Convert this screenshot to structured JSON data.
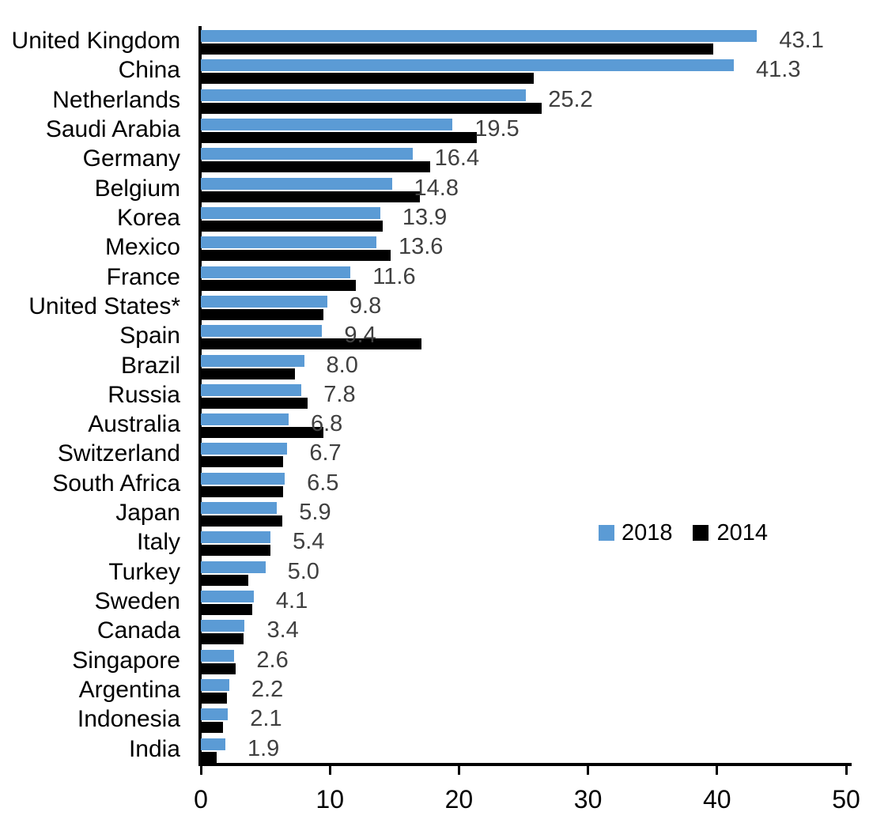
{
  "chart_data": {
    "type": "bar",
    "orientation": "horizontal",
    "title": "",
    "xlabel": "",
    "ylabel": "",
    "xlim": [
      0,
      50
    ],
    "x_ticks": [
      0,
      10,
      20,
      30,
      40,
      50
    ],
    "grid": false,
    "legend_position": "middle-right",
    "categories": [
      "United Kingdom",
      "China",
      "Netherlands",
      "Saudi Arabia",
      "Germany",
      "Belgium",
      "Korea",
      "Mexico",
      "France",
      "United States*",
      "Spain",
      "Brazil",
      "Russia",
      "Australia",
      "Switzerland",
      "South Africa",
      "Japan",
      "Italy",
      "Turkey",
      "Sweden",
      "Canada",
      "Singapore",
      "Argentina",
      "Indonesia",
      "India"
    ],
    "series": [
      {
        "name": "2018",
        "color": "#5B9BD5",
        "values": [
          43.1,
          41.3,
          25.2,
          19.5,
          16.4,
          14.8,
          13.9,
          13.6,
          11.6,
          9.8,
          9.4,
          8.0,
          7.8,
          6.8,
          6.7,
          6.5,
          5.9,
          5.4,
          5.0,
          4.1,
          3.4,
          2.6,
          2.2,
          2.1,
          1.9
        ]
      },
      {
        "name": "2014",
        "color": "#000000",
        "values": [
          39.7,
          25.8,
          26.4,
          21.4,
          17.8,
          17.0,
          14.1,
          14.7,
          12.0,
          9.5,
          17.1,
          7.3,
          8.3,
          9.5,
          6.4,
          6.4,
          6.3,
          5.4,
          3.7,
          4.0,
          3.3,
          2.7,
          2.0,
          1.7,
          1.2
        ]
      }
    ],
    "value_labels": [
      "43.1",
      "41.3",
      "25.2",
      "19.5",
      "16.4",
      "14.8",
      "13.9",
      "13.6",
      "11.6",
      "9.8",
      "9.4",
      "8.0",
      "7.8",
      "6.8",
      "6.7",
      "6.5",
      "5.9",
      "5.4",
      "5.0",
      "4.1",
      "3.4",
      "2.6",
      "2.2",
      "2.1",
      "1.9"
    ],
    "value_labels_for_series": "2018",
    "colors": {
      "bar_2018": "#5B9BD5",
      "bar_2014": "#000000",
      "value_label": "#404040",
      "axis": "#000000",
      "category_label": "#000000"
    }
  }
}
